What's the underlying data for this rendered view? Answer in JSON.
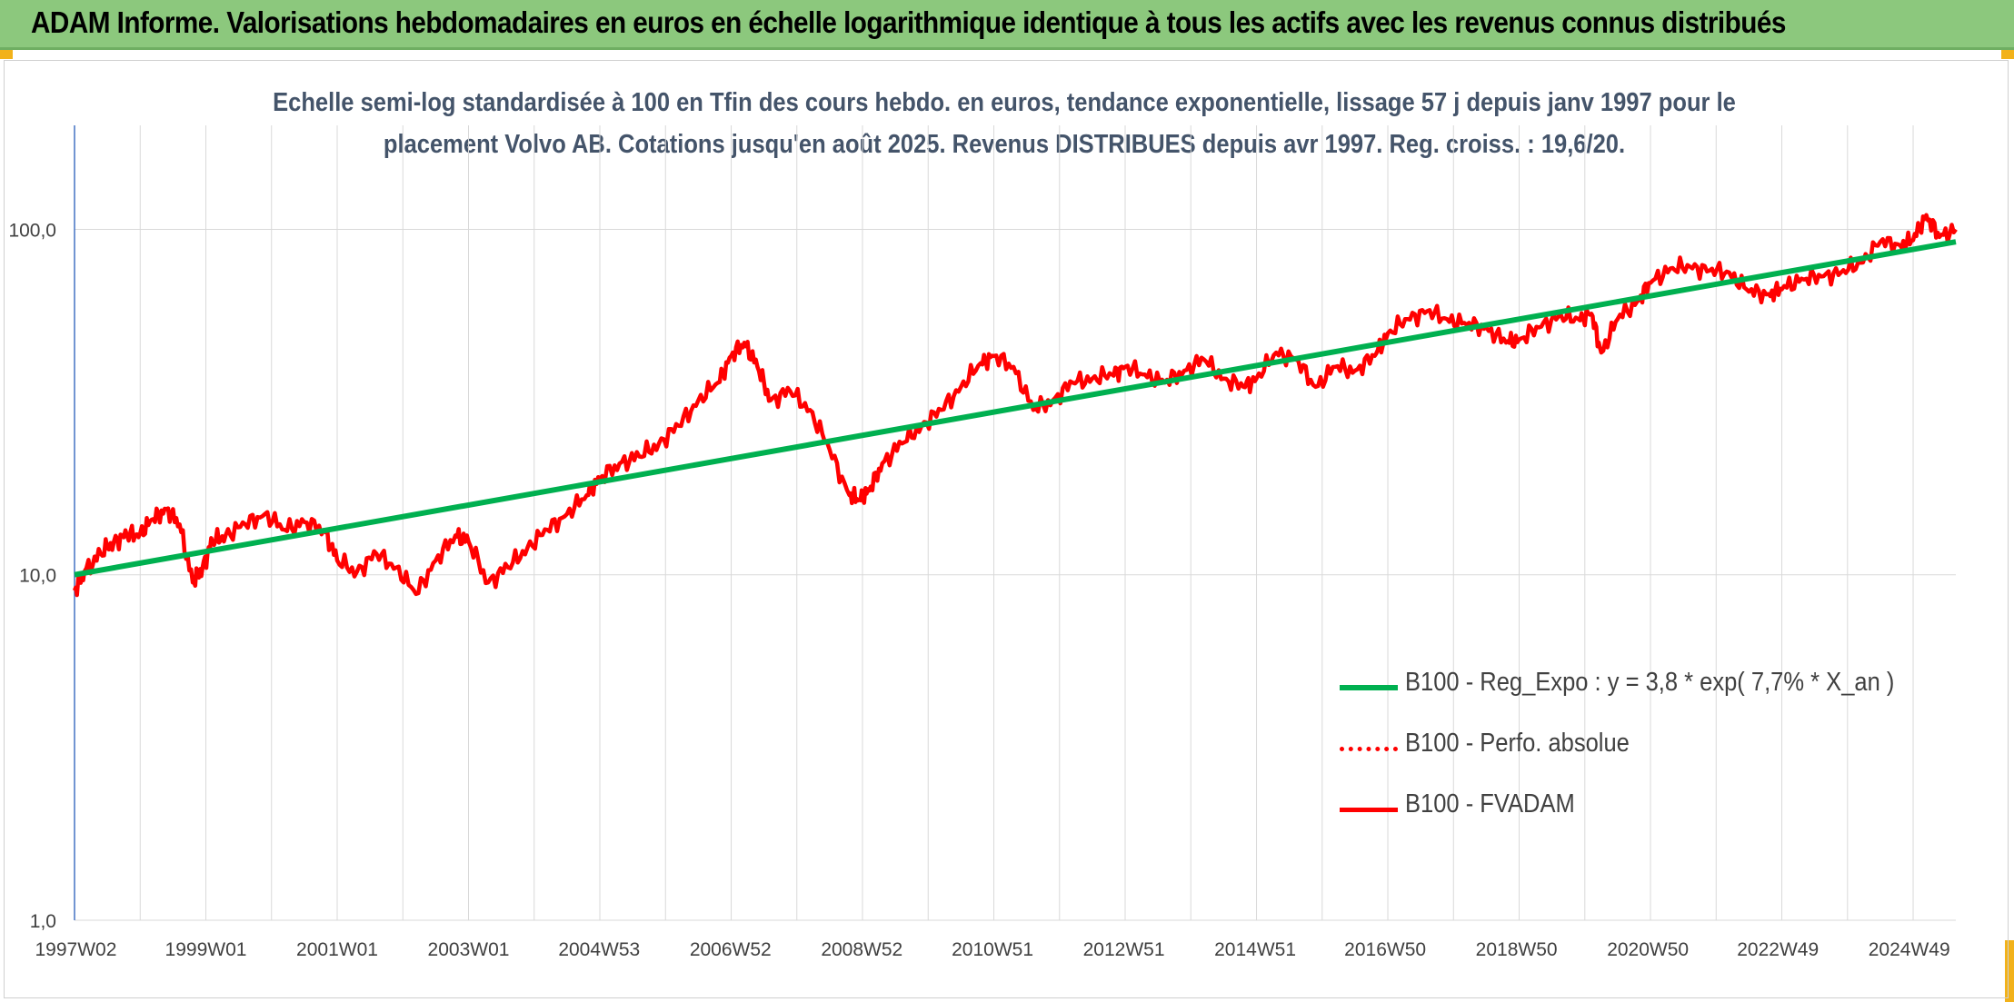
{
  "header": {
    "title": "ADAM Informe. Valorisations hebdomadaires en euros en échelle logarithmique identique à tous les actifs avec les revenus connus distribués"
  },
  "colors": {
    "header_bg": "#8cc87d",
    "corner_accent": "#f2b21a",
    "trend_line": "#00b050",
    "fvadam_line": "#ff0000",
    "perfo_line": "#ff0000",
    "gridline": "#d9d9d9",
    "axis_line": "#4472c4",
    "title_text": "#44546a"
  },
  "chart_data": {
    "type": "line",
    "title_line1": "Echelle semi-log standardisée à 100 en Tfin des cours hebdo. en euros, tendance exponentielle, lissage 57 j depuis janv 1997 pour le",
    "title_line2": "placement Volvo AB. Cotations jusqu'en août 2025. Revenus DISTRIBUES depuis avr 1997. Reg. croiss. : 19,6/20.",
    "y_scale": "log",
    "ylim": [
      1,
      200
    ],
    "xlim": [
      1997.0,
      2025.65
    ],
    "grid": true,
    "legend_position": "right-middle",
    "y_ticks": [
      {
        "value": 1,
        "label": "1,0"
      },
      {
        "value": 10,
        "label": "10,0"
      },
      {
        "value": 100,
        "label": "100,0"
      }
    ],
    "x_tick_labels": [
      {
        "year": 1997.02,
        "label": "1997W02"
      },
      {
        "year": 1999.0,
        "label": "1999W01"
      },
      {
        "year": 2001.0,
        "label": "2001W01"
      },
      {
        "year": 2003.0,
        "label": "2003W01"
      },
      {
        "year": 2004.99,
        "label": "2004W53"
      },
      {
        "year": 2006.99,
        "label": "2006W52"
      },
      {
        "year": 2008.99,
        "label": "2008W52"
      },
      {
        "year": 2010.98,
        "label": "2010W51"
      },
      {
        "year": 2012.98,
        "label": "2012W51"
      },
      {
        "year": 2014.98,
        "label": "2014W51"
      },
      {
        "year": 2016.96,
        "label": "2016W50"
      },
      {
        "year": 2018.96,
        "label": "2018W50"
      },
      {
        "year": 2020.96,
        "label": "2020W50"
      },
      {
        "year": 2022.94,
        "label": "2022W49"
      },
      {
        "year": 2024.94,
        "label": "2024W49"
      }
    ],
    "series": [
      {
        "name": "B100 - Reg_Expo : y = 3,8 * exp( 7,7% *  X_an )",
        "style": "solid-thick",
        "color": "#00b050",
        "x": [
          1997.0,
          2025.65
        ],
        "y": [
          10.0,
          92.0
        ]
      },
      {
        "name": "B100 - Perfo. absolue",
        "style": "dotted",
        "color": "#ff0000",
        "x": [],
        "y": []
      },
      {
        "name": "B100 - FVADAM",
        "style": "solid",
        "color": "#ff0000",
        "x": [
          1997.0,
          1997.15,
          1997.4,
          1997.6,
          1997.8,
          1998.0,
          1998.2,
          1998.4,
          1998.6,
          1998.8,
          1998.95,
          1999.1,
          1999.3,
          1999.6,
          1999.9,
          2000.2,
          2000.5,
          2000.8,
          2001.0,
          2001.3,
          2001.6,
          2001.9,
          2002.2,
          2002.5,
          2002.8,
          2003.0,
          2003.3,
          2003.6,
          2003.9,
          2004.2,
          2004.5,
          2004.8,
          2005.0,
          2005.3,
          2005.6,
          2005.9,
          2006.2,
          2006.5,
          2006.8,
          2007.0,
          2007.2,
          2007.4,
          2007.6,
          2007.9,
          2008.2,
          2008.5,
          2008.8,
          2008.95,
          2009.1,
          2009.3,
          2009.6,
          2009.9,
          2010.2,
          2010.5,
          2010.8,
          2011.0,
          2011.3,
          2011.6,
          2011.9,
          2012.2,
          2012.5,
          2012.8,
          2013.0,
          2013.3,
          2013.6,
          2013.9,
          2014.2,
          2014.5,
          2014.8,
          2015.0,
          2015.3,
          2015.6,
          2015.9,
          2016.2,
          2016.5,
          2016.8,
          2017.0,
          2017.3,
          2017.6,
          2017.9,
          2018.2,
          2018.5,
          2018.8,
          2019.0,
          2019.3,
          2019.6,
          2019.9,
          2020.1,
          2020.25,
          2020.5,
          2020.8,
          2021.0,
          2021.3,
          2021.6,
          2021.9,
          2022.2,
          2022.5,
          2022.8,
          2023.0,
          2023.3,
          2023.6,
          2023.9,
          2024.2,
          2024.5,
          2024.8,
          2025.0,
          2025.2,
          2025.4,
          2025.65
        ],
        "y": [
          9.0,
          10.2,
          11.5,
          12.5,
          13.0,
          13.2,
          14.5,
          15.5,
          14.0,
          9.5,
          10.5,
          12.5,
          13.0,
          14.0,
          15.0,
          13.5,
          14.2,
          13.5,
          11.0,
          10.2,
          11.5,
          10.5,
          8.8,
          11.0,
          13.0,
          12.5,
          9.5,
          10.5,
          12.0,
          13.5,
          15.0,
          17.0,
          19.0,
          21.0,
          22.0,
          24.0,
          27.0,
          32.0,
          36.0,
          43.0,
          47.0,
          40.0,
          32.0,
          34.0,
          30.0,
          23.0,
          17.0,
          16.5,
          17.5,
          21.0,
          24.0,
          27.0,
          30.0,
          35.0,
          41.0,
          43.0,
          40.0,
          30.0,
          32.0,
          36.0,
          37.0,
          38.0,
          40.0,
          38.0,
          36.0,
          39.0,
          42.0,
          37.0,
          35.0,
          37.0,
          44.0,
          42.0,
          35.0,
          40.0,
          39.0,
          43.0,
          50.0,
          55.0,
          58.0,
          55.0,
          53.0,
          52.0,
          47.0,
          48.0,
          52.0,
          56.0,
          55.0,
          57.0,
          44.0,
          55.0,
          62.0,
          70.0,
          77.0,
          78.0,
          76.0,
          75.0,
          66.0,
          65.0,
          67.0,
          72.0,
          73.0,
          75.0,
          80.0,
          92.0,
          90.0,
          93.0,
          110.0,
          95.0,
          100.0
        ]
      }
    ]
  }
}
